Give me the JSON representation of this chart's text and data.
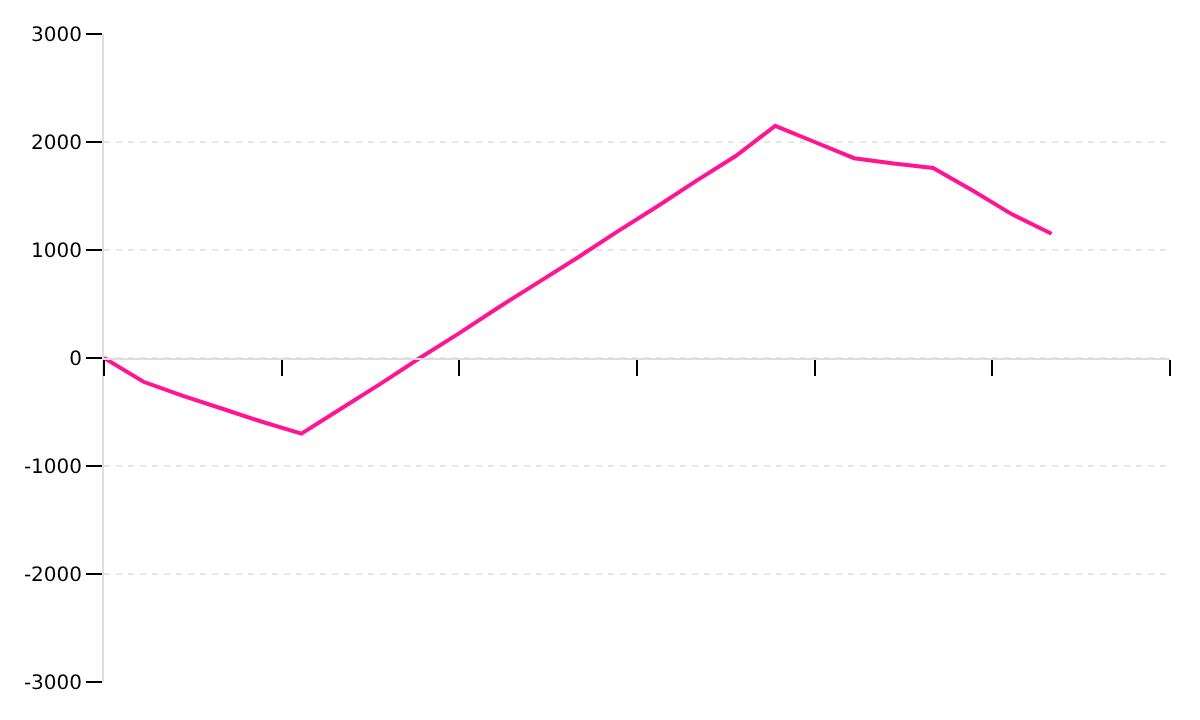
{
  "chart_data": {
    "type": "line",
    "categories": [
      null,
      null,
      null,
      null,
      null,
      null,
      null,
      null,
      null,
      null,
      null,
      null,
      null,
      null,
      null,
      null,
      null,
      null,
      null,
      null,
      null,
      null,
      null,
      null,
      null,
      null,
      null,
      null
    ],
    "series": [
      {
        "color": "#ff1493",
        "values": [
          0,
          -220,
          -350,
          -470,
          -590,
          -700,
          -470,
          -240,
          0,
          230,
          470,
          700,
          930,
          1170,
          1400,
          1640,
          1870,
          2150,
          2000,
          1850,
          1800,
          1760,
          1550,
          1330,
          1150,
          null,
          null,
          null
        ]
      }
    ],
    "ylim": [
      -3000,
      3000
    ],
    "yticks": [
      -3000,
      -2000,
      -1000,
      0,
      1000,
      2000,
      3000
    ],
    "grid": "y",
    "marker": "none",
    "line_style": "solid",
    "tick_labels": "y"
  }
}
